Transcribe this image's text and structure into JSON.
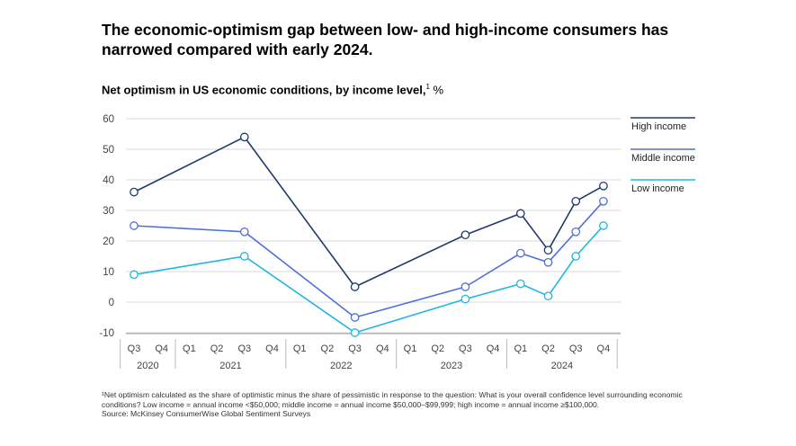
{
  "title": "The economic-optimism gap between low- and high-income consumers has narrowed compared with early 2024.",
  "subtitle": "Net optimism in US economic conditions, by income level,",
  "subtitle_sup": "1",
  "subtitle_unit": " %",
  "footnote": "¹Net optimism calculated as the share of optimistic minus the share of pessimistic in response to the question: What is your overall confidence level surrounding economic conditions? Low income = annual income <$50,000; middle income = annual income $50,000–$99,999; high income = annual income ≥$100,000.",
  "source": "Source: McKinsey ConsumerWise Global Sentiment Surveys",
  "chart_data": {
    "type": "line",
    "ylim": [
      -10,
      60
    ],
    "yticks": [
      -10,
      0,
      10,
      20,
      30,
      40,
      50,
      60
    ],
    "categories": [
      "Q3",
      "Q4",
      "Q1",
      "Q2",
      "Q3",
      "Q4",
      "Q1",
      "Q2",
      "Q3",
      "Q4",
      "Q1",
      "Q2",
      "Q3",
      "Q4",
      "Q1",
      "Q2",
      "Q3",
      "Q4"
    ],
    "years": [
      {
        "label": "2020",
        "from": 0,
        "to": 1
      },
      {
        "label": "2021",
        "from": 2,
        "to": 5
      },
      {
        "label": "2022",
        "from": 6,
        "to": 9
      },
      {
        "label": "2023",
        "from": 10,
        "to": 13
      },
      {
        "label": "2024",
        "from": 14,
        "to": 17
      }
    ],
    "series": [
      {
        "name": "High income",
        "color": "#1f3a6e",
        "points": [
          [
            0,
            36
          ],
          [
            4,
            54
          ],
          [
            8,
            5
          ],
          [
            12,
            22
          ],
          [
            14,
            29
          ],
          [
            15,
            17
          ],
          [
            16,
            33
          ],
          [
            17,
            38
          ]
        ]
      },
      {
        "name": "Middle income",
        "color": "#4f6fd8",
        "points": [
          [
            0,
            25
          ],
          [
            4,
            23
          ],
          [
            8,
            -5
          ],
          [
            12,
            5
          ],
          [
            14,
            16
          ],
          [
            15,
            13
          ],
          [
            16,
            23
          ],
          [
            17,
            33
          ]
        ]
      },
      {
        "name": "Low income",
        "color": "#1fb6e0",
        "points": [
          [
            0,
            9
          ],
          [
            4,
            15
          ],
          [
            8,
            -10
          ],
          [
            12,
            1
          ],
          [
            14,
            6
          ],
          [
            15,
            2
          ],
          [
            16,
            15
          ],
          [
            17,
            25
          ]
        ]
      }
    ],
    "legend_position": "right",
    "grid": true
  }
}
